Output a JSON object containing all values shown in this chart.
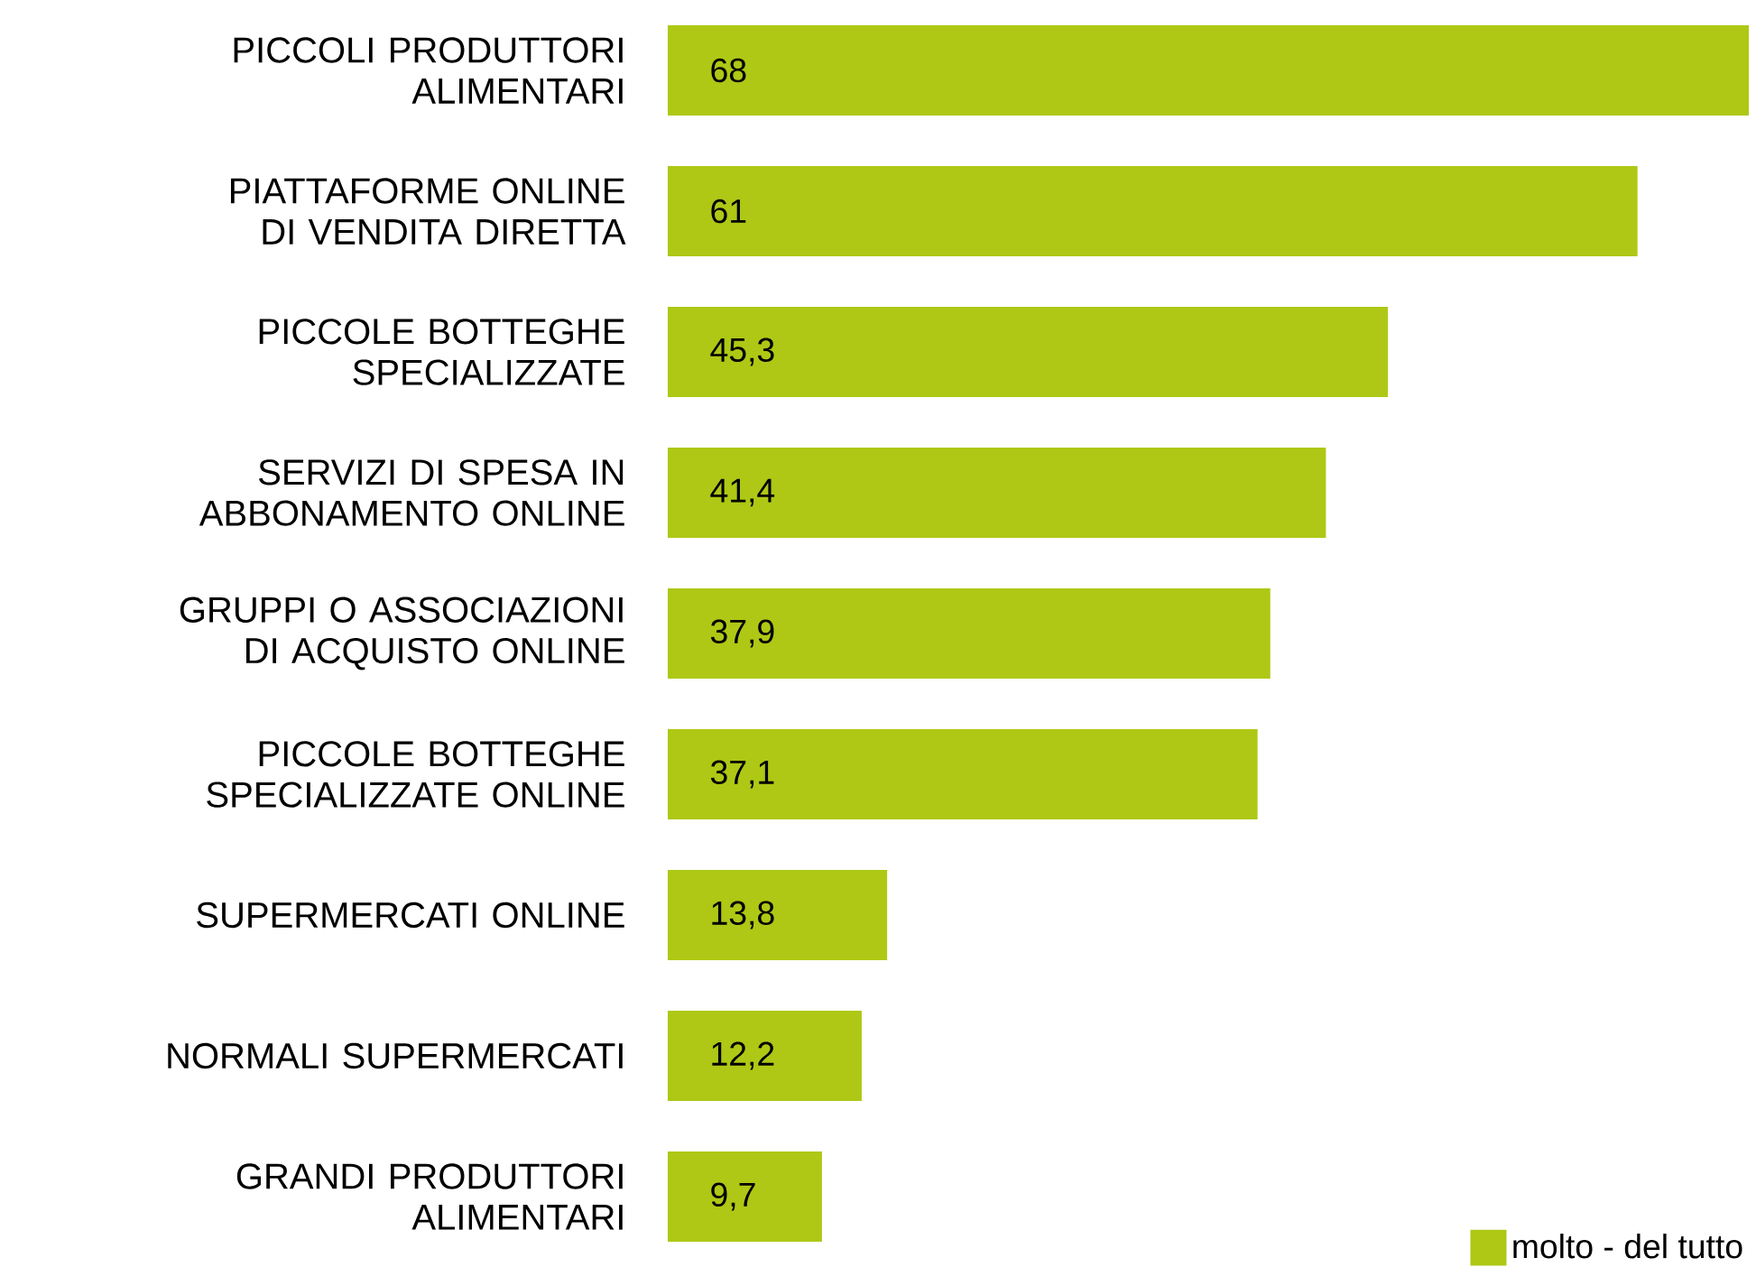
{
  "chart_data": {
    "type": "bar",
    "orientation": "horizontal",
    "categories": [
      "PICCOLI PRODUTTORI ALIMENTARI",
      "PIATTAFORME ONLINE DI VENDITA DIRETTA",
      "PICCOLE BOTTEGHE SPECIALIZZATE",
      "SERVIZI DI SPESA IN ABBONAMENTO ONLINE",
      "GRUPPI O ASSOCIAZIONI DI ACQUISTO ONLINE",
      "PICCOLE BOTTEGHE SPECIALIZZATE ONLINE",
      "SUPERMERCATI ONLINE",
      "NORMALI SUPERMERCATI",
      "GRANDI PRODUTTORI ALIMENTARI"
    ],
    "series": [
      {
        "name": "molto - del tutto",
        "color": "#aec815",
        "values": [
          68,
          61,
          45.3,
          41.4,
          37.9,
          37.1,
          13.8,
          12.2,
          9.7
        ],
        "value_labels": [
          "68",
          "61",
          "45,3",
          "41,4",
          "37,9",
          "37,1",
          "13,8",
          "12,2",
          "9,7"
        ]
      }
    ],
    "legend": "bottom right"
  }
}
